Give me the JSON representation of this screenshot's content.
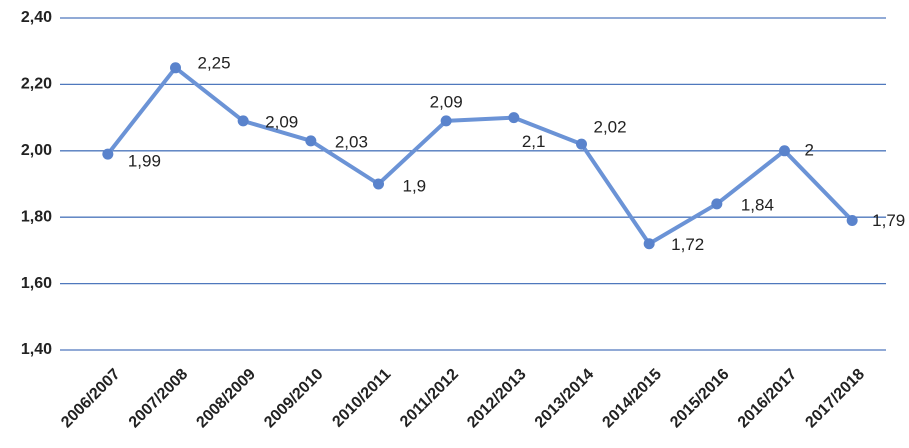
{
  "chart_data": {
    "type": "line",
    "categories": [
      "2006/2007",
      "2007/2008",
      "2008/2009",
      "2009/2010",
      "2010/2011",
      "2011/2012",
      "2012/2013",
      "2013/2014",
      "2014/2015",
      "2015/2016",
      "2016/2017",
      "2017/2018"
    ],
    "series": [
      {
        "color": "#6b93d6",
        "values": [
          1.99,
          2.25,
          2.09,
          2.03,
          1.9,
          2.09,
          2.1,
          2.02,
          1.72,
          1.84,
          2,
          1.79
        ],
        "value_labels": [
          "1,99",
          "2,25",
          "2,09",
          "2,03",
          "1,9",
          "2,09",
          "2,1",
          "2,02",
          "1,72",
          "1,84",
          "2",
          "1,79"
        ]
      }
    ],
    "ylim": [
      1.4,
      2.4
    ],
    "yticks": [
      {
        "value": 1.4,
        "label": "1,40"
      },
      {
        "value": 1.6,
        "label": "1,60"
      },
      {
        "value": 1.8,
        "label": "1,80"
      },
      {
        "value": 2.0,
        "label": "2,00"
      },
      {
        "value": 2.2,
        "label": "2,20"
      },
      {
        "value": 2.4,
        "label": "2,40"
      }
    ],
    "grid": true
  }
}
